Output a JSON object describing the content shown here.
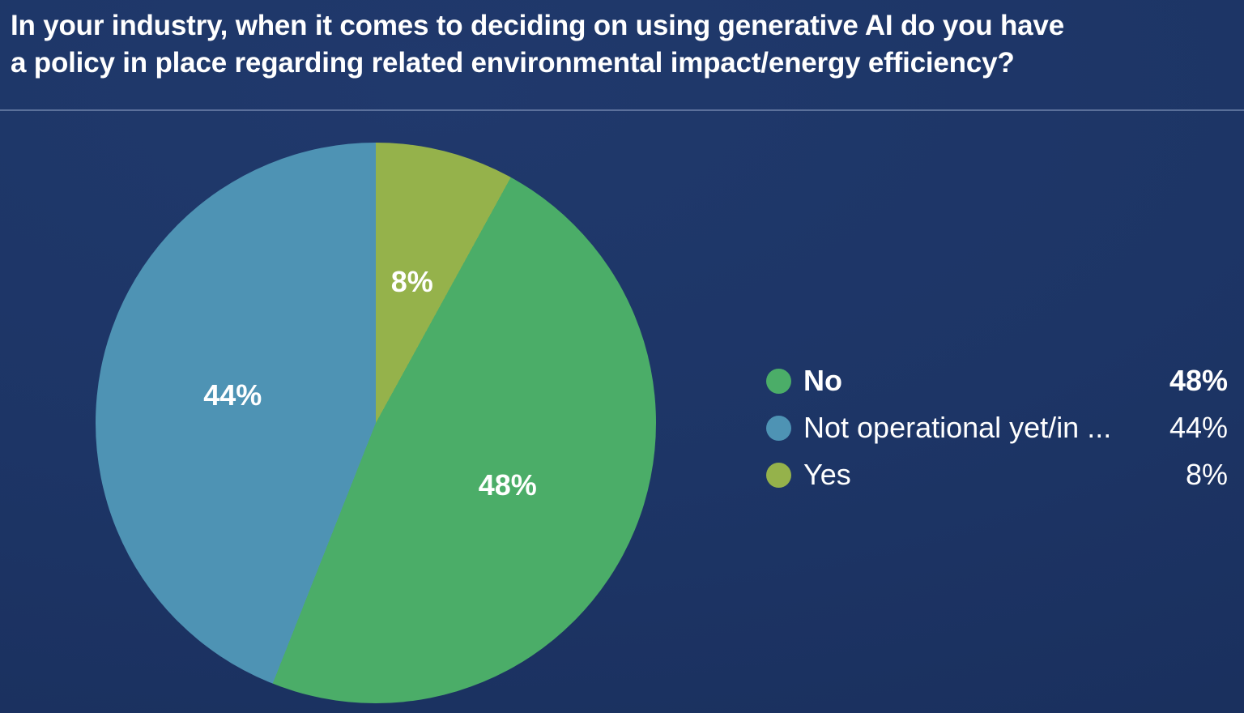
{
  "title": {
    "lines": [
      "In your industry, when it comes to deciding on using generative AI do you have",
      "a policy in place regarding related environmental impact/energy efficiency?"
    ]
  },
  "colors": {
    "background": "#1d3566",
    "divider": "rgba(163,181,216,0.45)",
    "text": "#ffffff"
  },
  "chart_data": {
    "type": "pie",
    "title": "In your industry, when it comes to deciding on using generative AI do you have a policy in place regarding related environmental impact/energy efficiency?",
    "slices": [
      {
        "label": "No",
        "value": 48,
        "display_value": "48%",
        "color": "#4bad68",
        "emphasized": true
      },
      {
        "label": "Not operational yet/in ...",
        "value": 44,
        "display_value": "44%",
        "color": "#4e93b4",
        "emphasized": false
      },
      {
        "label": "Yes",
        "value": 8,
        "display_value": "8%",
        "color": "#95b24b",
        "emphasized": false
      }
    ],
    "draw_order": [
      2,
      0,
      1
    ],
    "start_angle_deg": 0,
    "direction": "clockwise",
    "data_labels": "percent-inside",
    "legend_position": "right",
    "label_radius_fraction": 0.52
  }
}
